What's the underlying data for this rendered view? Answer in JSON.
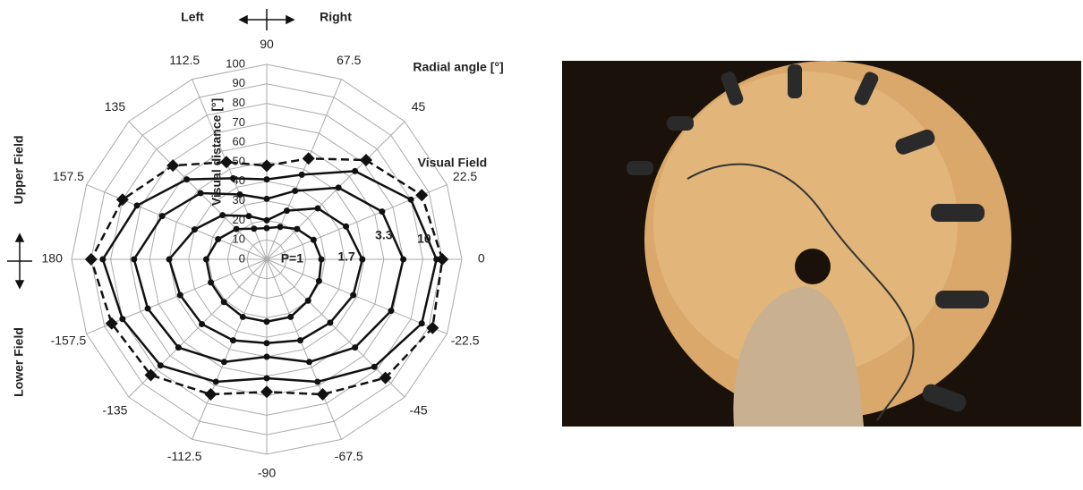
{
  "chart_data": {
    "type": "radar",
    "angles": [
      0,
      22.5,
      45,
      67.5,
      90,
      112.5,
      135,
      157.5,
      180,
      -157.5,
      -135,
      -112.5,
      -90,
      -67.5,
      -45,
      -22.5
    ],
    "rlim": [
      0,
      100
    ],
    "rticks": [
      0,
      10,
      20,
      30,
      40,
      50,
      60,
      70,
      80,
      90,
      100
    ],
    "grid": true,
    "angle_label": "Radial angle [°]",
    "radius_label": "Visual distance [°]",
    "annotations": {
      "left": "Left",
      "right": "Right",
      "upper": "Upper Field",
      "lower": "Lower Field"
    },
    "series": [
      {
        "name": "Visual Field",
        "color": "#111111",
        "line_style": "dashed",
        "marker": "diamond",
        "values": [
          90,
          86,
          72,
          56,
          48,
          54,
          68,
          80,
          90,
          86,
          84,
          75,
          68,
          75,
          86,
          92
        ]
      },
      {
        "name": "10",
        "color": "#111111",
        "line_style": "solid",
        "marker": "circle",
        "values": [
          87,
          80,
          64,
          47,
          41,
          45,
          58,
          72,
          84,
          80,
          77,
          68,
          61,
          68,
          78,
          86
        ]
      },
      {
        "name": "3.3",
        "color": "#111111",
        "line_style": "solid",
        "marker": "circle",
        "values": [
          70,
          64,
          52,
          38,
          31,
          36,
          48,
          58,
          68,
          66,
          64,
          57,
          50,
          57,
          64,
          69
        ]
      },
      {
        "name": "1.7",
        "color": "#111111",
        "line_style": "solid",
        "marker": "circle",
        "values": [
          49,
          44,
          37,
          27,
          20,
          24,
          32,
          40,
          50,
          48,
          47,
          45,
          43,
          45,
          46,
          48
        ]
      },
      {
        "name": "P=1",
        "color": "#111111",
        "line_style": "solid",
        "marker": "circle",
        "values": [
          28,
          26,
          22,
          18,
          16,
          17,
          22,
          27,
          31,
          31,
          31,
          32,
          32,
          32,
          30,
          29
        ]
      }
    ]
  }
}
